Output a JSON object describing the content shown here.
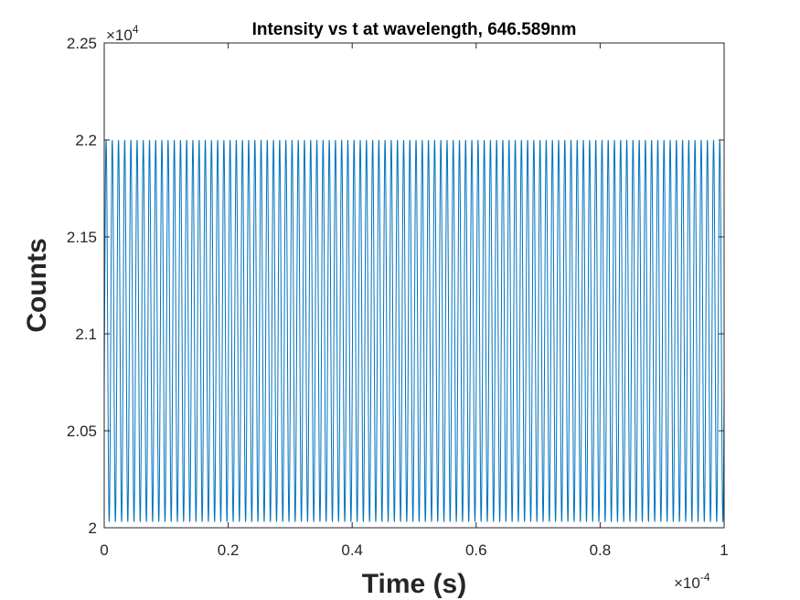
{
  "chart_data": {
    "type": "line",
    "title": "Intensity vs t at wavelength, 646.589nm",
    "xlabel": "Time (s)",
    "ylabel": "Counts",
    "x_exponent": {
      "prefix": "×10",
      "power": "-4"
    },
    "y_exponent": {
      "prefix": "×10",
      "power": "4"
    },
    "xlim": [
      0,
      1
    ],
    "ylim": [
      2,
      2.25
    ],
    "x_ticks": [
      "0",
      "0.2",
      "0.4",
      "0.6",
      "0.8",
      "1"
    ],
    "y_ticks": [
      "2",
      "2.05",
      "2.1",
      "2.15",
      "2.2",
      "2.25"
    ],
    "grid": false,
    "series": [
      {
        "color": "#0072BD",
        "signal": {
          "shape": "sinusoid",
          "min": 2.003,
          "max": 2.2,
          "cycles": 100,
          "x_start": 0,
          "x_end": 1,
          "start_value": 2.07
        }
      }
    ]
  },
  "colors": {
    "axis": "#262626",
    "line": "#0072BD",
    "background": "#ffffff"
  }
}
